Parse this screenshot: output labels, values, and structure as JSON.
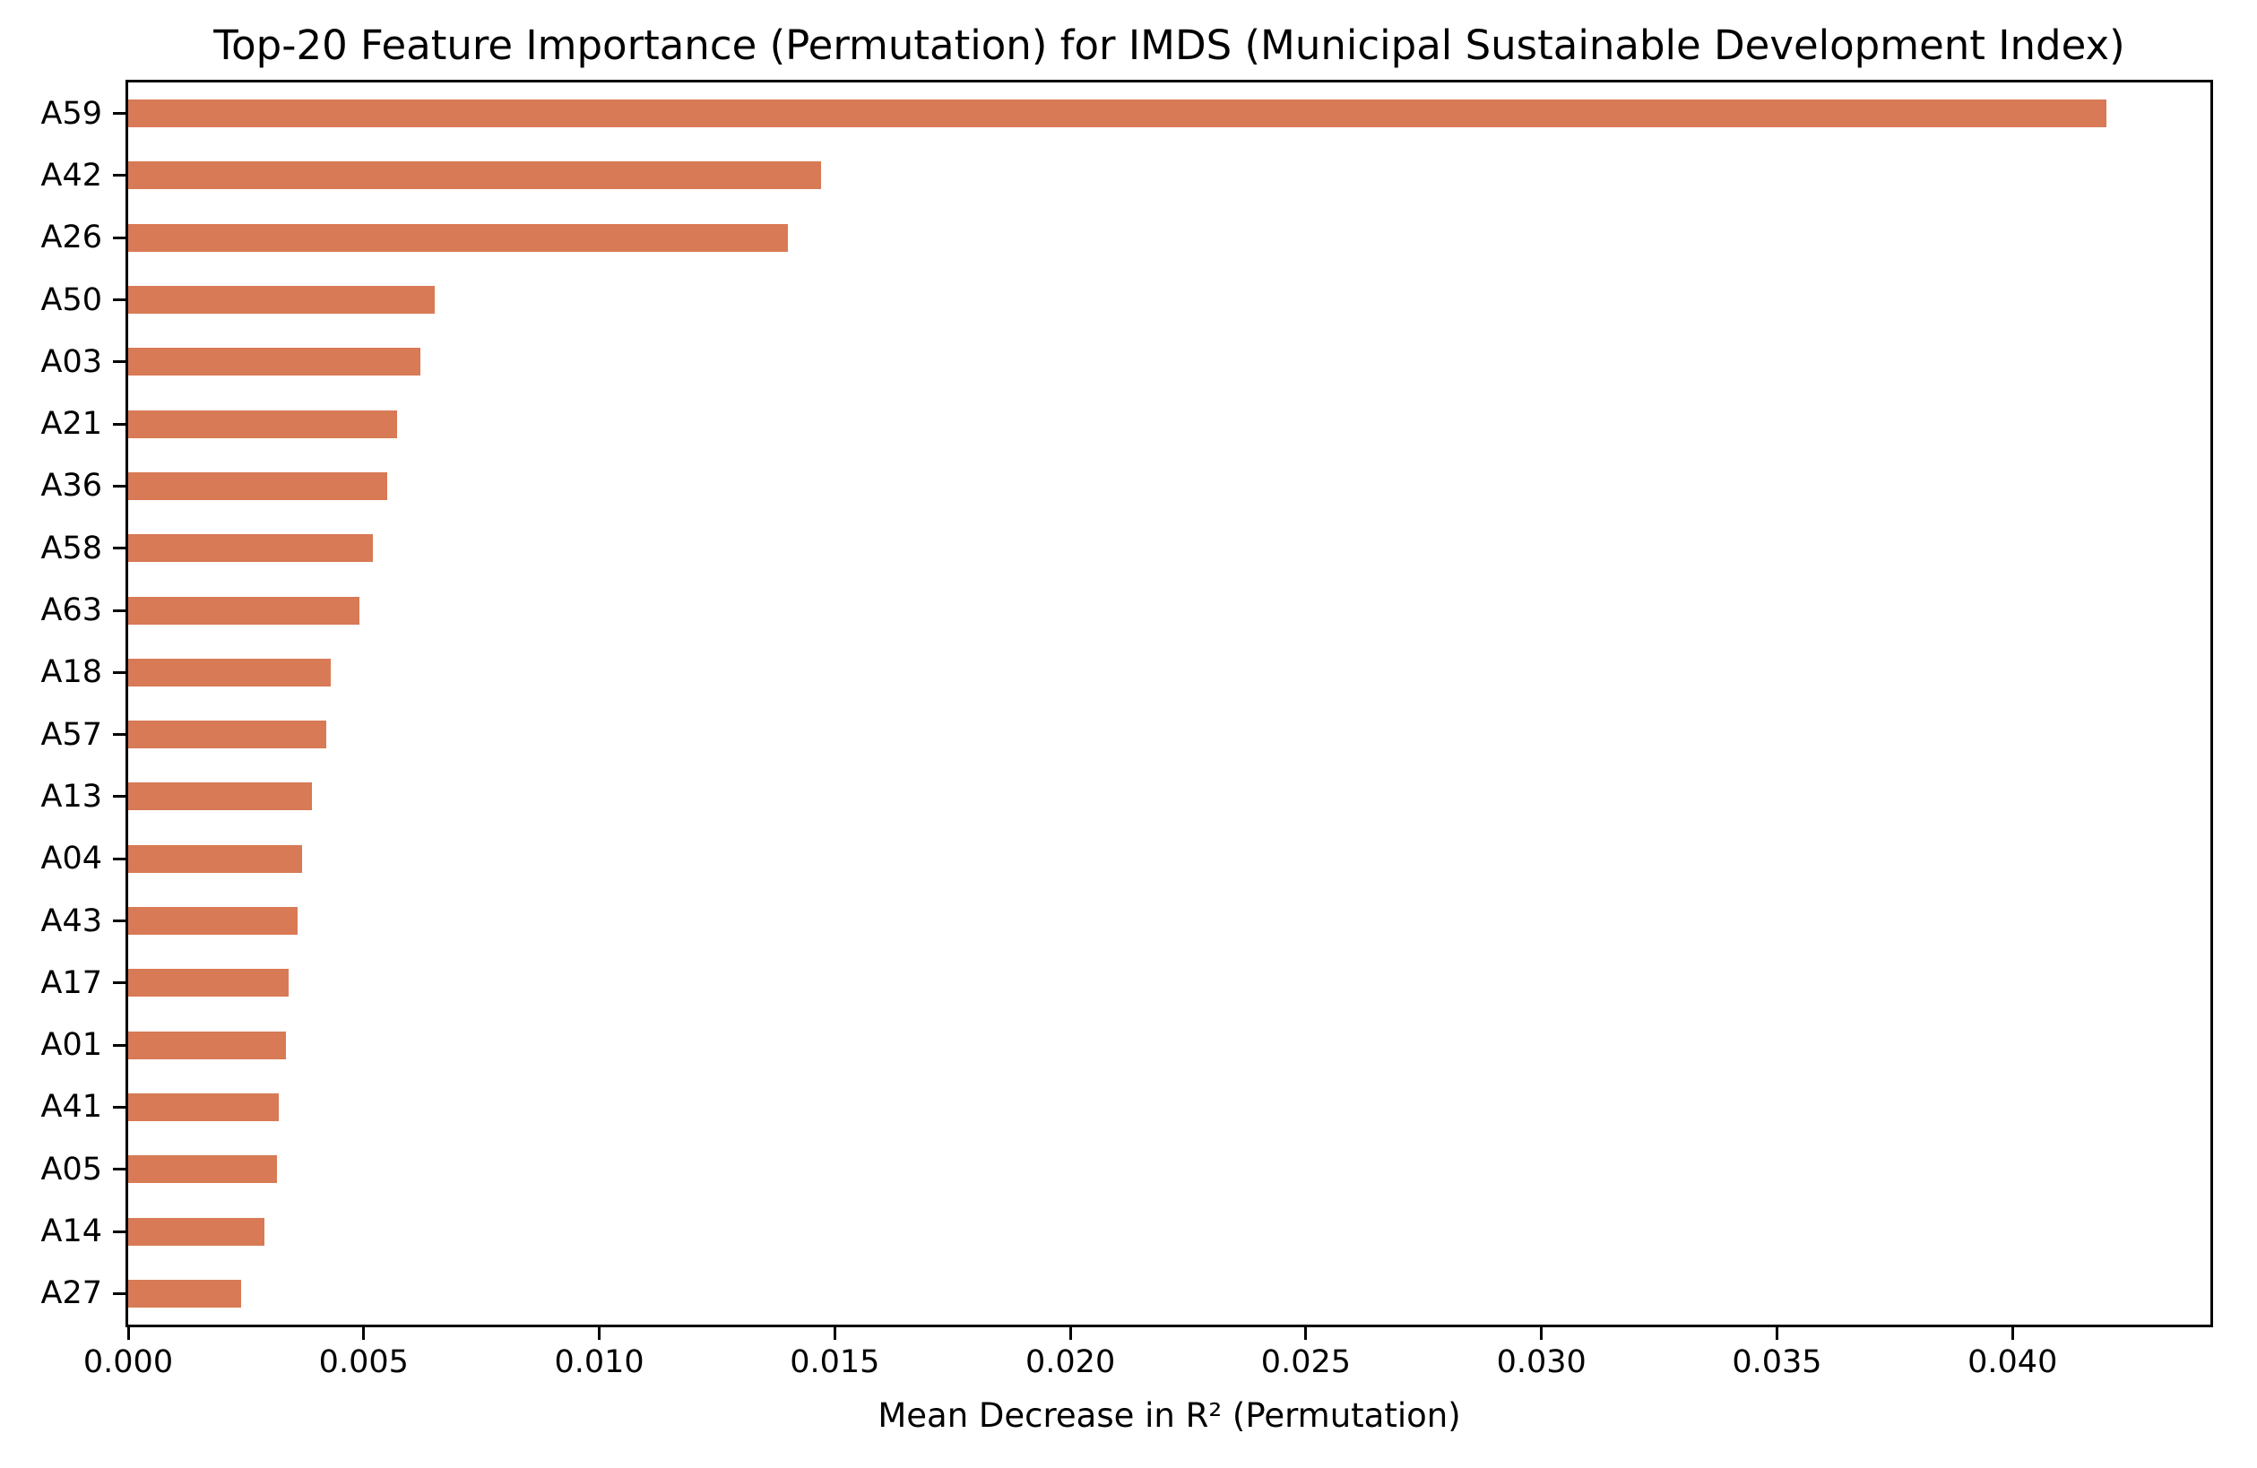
{
  "chart_data": {
    "type": "bar",
    "orientation": "horizontal",
    "title": "Top-20 Feature Importance (Permutation) for IMDS (Municipal Sustainable Development Index)",
    "xlabel": "Mean Decrease in R² (Permutation)",
    "ylabel": "",
    "categories": [
      "A59",
      "A42",
      "A26",
      "A50",
      "A03",
      "A21",
      "A36",
      "A58",
      "A63",
      "A18",
      "A57",
      "A13",
      "A04",
      "A43",
      "A17",
      "A01",
      "A41",
      "A05",
      "A14",
      "A27"
    ],
    "values": [
      0.042,
      0.0147,
      0.014,
      0.0065,
      0.0062,
      0.0057,
      0.0055,
      0.0052,
      0.0049,
      0.0043,
      0.0042,
      0.0039,
      0.0037,
      0.0036,
      0.0034,
      0.00335,
      0.0032,
      0.00315,
      0.0029,
      0.0024
    ],
    "xlim": [
      0,
      0.0442
    ],
    "xticks": [
      0.0,
      0.005,
      0.01,
      0.015,
      0.02,
      0.025,
      0.03,
      0.035,
      0.04
    ],
    "xtick_labels": [
      "0.000",
      "0.005",
      "0.010",
      "0.015",
      "0.020",
      "0.025",
      "0.030",
      "0.035",
      "0.040"
    ],
    "grid": false,
    "legend": false,
    "bar_color": "#d87a55",
    "axis_color": "#000000",
    "text_color": "#000000",
    "bar_height_ratio": 0.45
  }
}
